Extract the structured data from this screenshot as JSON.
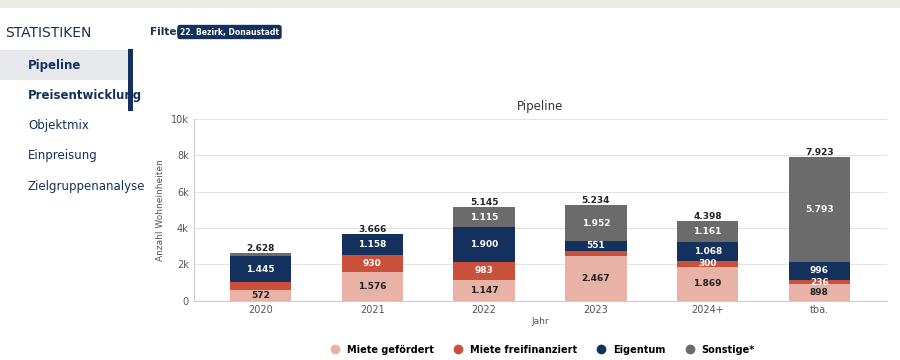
{
  "page": {
    "heading": "STATISTIKEN",
    "menu": [
      "Pipeline",
      "Preisentwicklung",
      "Objektmix",
      "Einpreisung",
      "Zielgruppenanalyse"
    ],
    "filter_label": "Filter",
    "filter": "22. Bezirk, Donaustadt"
  },
  "chart_data": {
    "type": "bar",
    "title": "Pipeline",
    "x_label": "Jahr",
    "y_label": "Anzahl Wohneinheiten",
    "categories": [
      "2020",
      "2021",
      "2022",
      "2023",
      "2024+",
      "tba."
    ],
    "stacked": true,
    "data_labels": true,
    "grid": true,
    "legend": "lower center",
    "ylim": [
      0,
      10000
    ],
    "yticks": [
      0,
      {
        "value": 2000,
        "label": "2k"
      },
      {
        "value": 4000,
        "label": "4k"
      },
      {
        "value": 6000,
        "label": "6k"
      },
      {
        "value": 8000,
        "label": "8k"
      },
      {
        "value": 10000,
        "label": "10k"
      }
    ],
    "series": [
      {
        "name": "Miete gefördert",
        "color": "#e8b2a6",
        "values": [
          572,
          1576,
          1147,
          2467,
          1869,
          898
        ],
        "value_labels": [
          "572",
          "1.576",
          "1.147",
          "2.467",
          "1.869",
          "898"
        ]
      },
      {
        "name": "Miete freifinanziert",
        "color": "#c9503a",
        "values": [
          430,
          930,
          983,
          264,
          300,
          236
        ],
        "value_labels": [
          null,
          "930",
          "983",
          null,
          "300",
          "236"
        ]
      },
      {
        "name": "Eigentum",
        "color": "#13315c",
        "values": [
          1445,
          1158,
          1900,
          551,
          1068,
          996
        ],
        "value_labels": [
          "1.445",
          "1.158",
          "1.900",
          "551",
          "1.068",
          "996"
        ]
      },
      {
        "name": "Sonstige*",
        "color": "#6b6b6b",
        "values": [
          181,
          2,
          1115,
          1952,
          1161,
          5793
        ],
        "value_labels": [
          null,
          null,
          "1.115",
          "1.952",
          "1.161",
          "5.793"
        ]
      }
    ],
    "totals": [
      2628,
      3666,
      5145,
      5234,
      4398,
      7923
    ],
    "total_labels": [
      "2.628",
      "3.666",
      "5.145",
      "5.234",
      "4.398",
      "7.923"
    ]
  }
}
